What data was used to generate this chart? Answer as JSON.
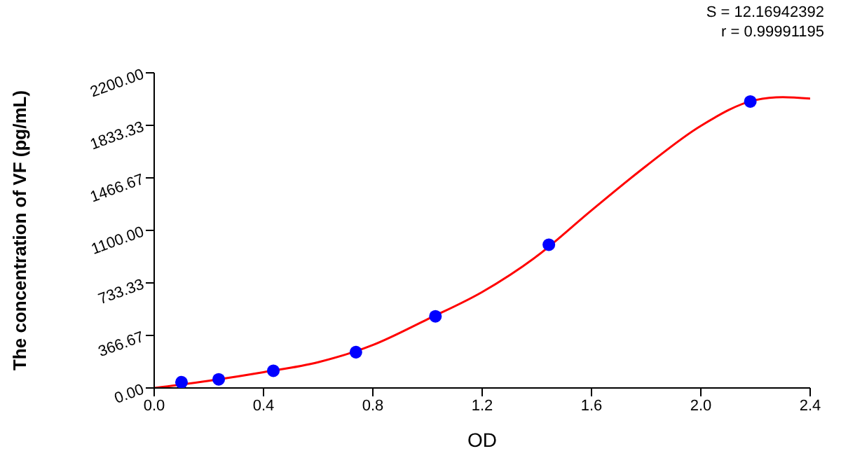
{
  "chart_data": {
    "type": "scatter",
    "xlabel": "OD",
    "ylabel": "The concentration of VF (pg/mL)",
    "annotations": [
      "S = 12.16942392",
      "r = 0.99991195"
    ],
    "xlim": [
      0,
      2.4
    ],
    "xticks": [
      {
        "value": 0,
        "label": "0.0"
      },
      0.4,
      0.8,
      1.2,
      1.6,
      {
        "value": 2,
        "label": "2.0"
      },
      2.4
    ],
    "ylim": [
      0,
      2200
    ],
    "yticks": [
      {
        "value": 0,
        "label": "0.00"
      },
      366.67,
      733.33,
      {
        "value": 1100,
        "label": "1100.00"
      },
      1466.67,
      1833.33,
      {
        "value": 2200,
        "label": "2200.00"
      }
    ],
    "marker": "circle",
    "series": [
      {
        "type": "line",
        "color": "#ff0000",
        "marker": "none",
        "line_style": "solid",
        "x": [
          0,
          0.2,
          0.4,
          0.6,
          0.8,
          1.0,
          1.2,
          1.4,
          1.6,
          1.8,
          2.0,
          2.2,
          2.3,
          2.4
        ],
        "values": [
          0,
          50,
          110,
          180,
          300,
          480,
          670,
          920,
          1240,
          1550,
          1830,
          2010,
          2030,
          2020
        ]
      },
      {
        "color": "#0000ff",
        "x": [
          0.1,
          0.236,
          0.436,
          0.738,
          1.029,
          1.444,
          2.181
        ],
        "values": [
          40,
          60,
          120,
          250,
          500,
          1000,
          2000
        ]
      }
    ]
  }
}
